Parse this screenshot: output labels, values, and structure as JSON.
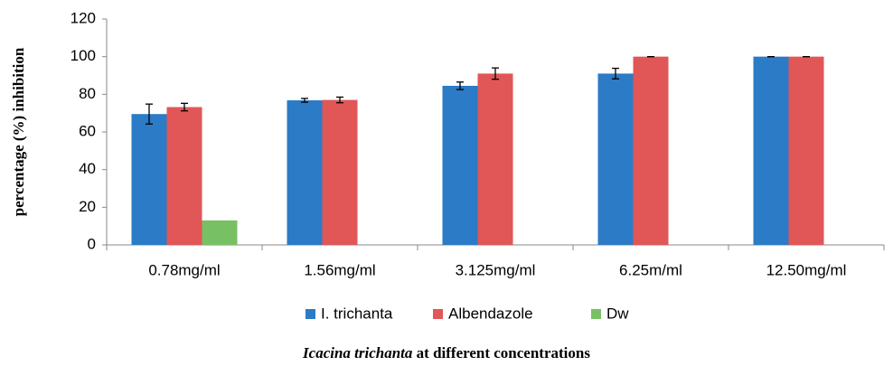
{
  "chart_data": {
    "type": "bar",
    "ylabel": "percentage (%) inhibition",
    "xlabel": {
      "italic": "Icacina trichanta",
      "rest": "at different concentrations"
    },
    "categories": [
      "0.78mg/ml",
      "1.56mg/ml",
      "3.125mg/ml",
      "6.25m/ml",
      "12.50mg/ml"
    ],
    "series": [
      {
        "name": "I.  trichanta",
        "color": "#2b7bc6",
        "values": [
          69.5,
          76.8,
          84.5,
          91,
          100
        ],
        "errors": [
          5.3,
          1,
          2,
          2.8,
          0
        ]
      },
      {
        "name": "Albendazole",
        "color": "#e15657",
        "values": [
          73.2,
          77,
          91,
          100,
          100
        ],
        "errors": [
          2,
          1.5,
          3,
          0,
          0
        ]
      },
      {
        "name": "Dw",
        "color": "#78c064",
        "values": [
          13,
          0,
          0,
          0,
          0
        ]
      }
    ],
    "ylim": [
      0,
      120
    ],
    "yticks": [
      0,
      20,
      40,
      60,
      80,
      100,
      120
    ]
  }
}
